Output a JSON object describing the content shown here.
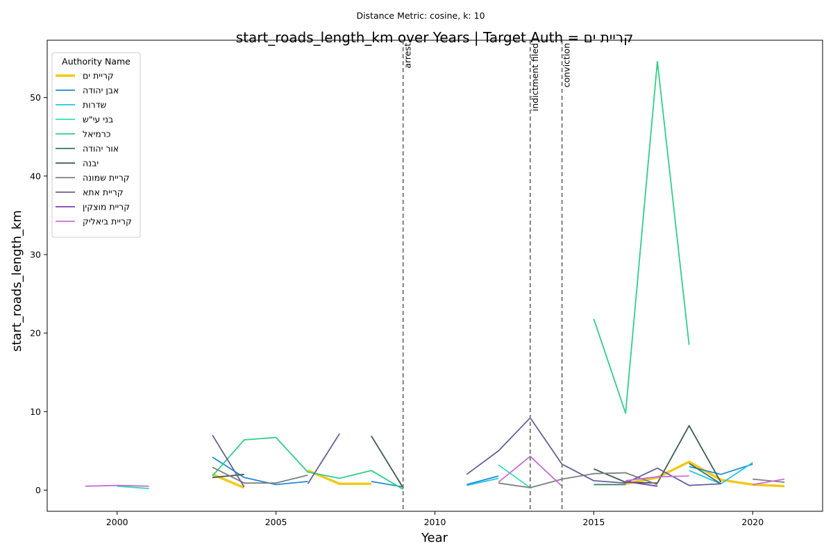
{
  "suptitle": "Distance Metric: cosine, k: 10",
  "chart_data": {
    "type": "line",
    "title": "start_roads_length_km over Years | Target Auth = קריית ים",
    "xlabel": "Year",
    "ylabel": "start_roads_length_km",
    "xlim": [
      1997.8,
      2022.2
    ],
    "ylim": [
      -2.7,
      57.3
    ],
    "x_ticks": [
      2000,
      2005,
      2010,
      2015,
      2020
    ],
    "y_ticks": [
      0,
      10,
      20,
      30,
      40,
      50
    ],
    "grid": false,
    "legend": {
      "title": "Authority Name",
      "placement": "top-left"
    },
    "events": [
      {
        "x": 2009,
        "label": "arrest"
      },
      {
        "x": 2013,
        "label": "indictment filed"
      },
      {
        "x": 2014,
        "label": "conviction"
      }
    ],
    "series": [
      {
        "name": "קריית ים",
        "color": "#f2c919",
        "width": 3.5,
        "points": [
          [
            2003,
            2.0
          ],
          [
            2004,
            0.3
          ],
          [
            null,
            null
          ],
          [
            2006,
            2.5
          ],
          [
            2007,
            0.8
          ],
          [
            2008,
            0.8
          ],
          [
            null,
            null
          ],
          [
            2016,
            0.8
          ],
          [
            2017,
            1.6
          ],
          [
            2018,
            3.6
          ],
          [
            2019,
            1.3
          ],
          [
            2020,
            0.7
          ],
          [
            2021,
            0.5
          ]
        ]
      },
      {
        "name": "אבן יהודה",
        "color": "#1f8ad6",
        "width": 1.8,
        "points": [
          [
            2003,
            4.2
          ],
          [
            2004,
            1.6
          ],
          [
            2005,
            0.7
          ],
          [
            2006,
            1.1
          ],
          [
            null,
            null
          ],
          [
            2008,
            1.1
          ],
          [
            2009,
            0.4
          ],
          [
            null,
            null
          ],
          [
            2011,
            0.7
          ],
          [
            2012,
            1.8
          ],
          [
            null,
            null
          ],
          [
            2018,
            3.0
          ],
          [
            2019,
            2.0
          ],
          [
            2020,
            3.3
          ]
        ]
      },
      {
        "name": "שדרות",
        "color": "#22c3e6",
        "width": 1.8,
        "points": [
          [
            2011,
            0.6
          ],
          [
            2012,
            1.5
          ],
          [
            null,
            null
          ],
          [
            2018,
            2.5
          ],
          [
            2019,
            0.8
          ],
          [
            2020,
            3.5
          ]
        ]
      },
      {
        "name": "בני עי\"ש",
        "color": "#2ee0b4",
        "width": 1.8,
        "points": [
          [
            2000,
            0.5
          ],
          [
            2001,
            0.2
          ],
          [
            null,
            null
          ],
          [
            2012,
            3.2
          ],
          [
            2013,
            0.3
          ]
        ]
      },
      {
        "name": "כרמיאל",
        "color": "#2ecf87",
        "width": 1.8,
        "points": [
          [
            2003,
            1.8
          ],
          [
            2004,
            6.4
          ],
          [
            2005,
            6.7
          ],
          [
            2006,
            2.3
          ],
          [
            2007,
            1.5
          ],
          [
            2008,
            2.5
          ],
          [
            2009,
            0.1
          ],
          [
            null,
            null
          ],
          [
            2015,
            21.8
          ],
          [
            2016,
            9.8
          ],
          [
            2017,
            54.6
          ],
          [
            2018,
            18.5
          ]
        ]
      },
      {
        "name": "אור יהודה",
        "color": "#357561",
        "width": 1.8,
        "points": [
          [
            2015,
            0.7
          ],
          [
            2016,
            0.7
          ],
          [
            null,
            null
          ],
          [
            2018,
            3.4
          ],
          [
            2019,
            0.8
          ]
        ]
      },
      {
        "name": "יבנה",
        "color": "#3c5a52",
        "width": 1.8,
        "points": [
          [
            2003,
            1.6
          ],
          [
            2004,
            2.0
          ],
          [
            null,
            null
          ],
          [
            2008,
            6.9
          ],
          [
            2009,
            0.3
          ],
          [
            null,
            null
          ],
          [
            2015,
            2.7
          ],
          [
            2016,
            1.0
          ],
          [
            2017,
            0.9
          ],
          [
            2018,
            8.2
          ],
          [
            2019,
            1.0
          ]
        ]
      },
      {
        "name": "קריית שמונה",
        "color": "#7a807e",
        "width": 1.8,
        "points": [
          [
            2003,
            2.9
          ],
          [
            2004,
            0.9
          ],
          [
            2005,
            0.9
          ],
          [
            2006,
            1.9
          ],
          [
            null,
            null
          ],
          [
            2012,
            0.9
          ],
          [
            2013,
            0.3
          ],
          [
            2014,
            1.4
          ],
          [
            2015,
            2.1
          ],
          [
            2016,
            2.2
          ],
          [
            2017,
            0.7
          ],
          [
            null,
            null
          ],
          [
            2020,
            1.4
          ],
          [
            2021,
            1.0
          ]
        ]
      },
      {
        "name": "קריית אתא",
        "color": "#62619a",
        "width": 1.8,
        "points": [
          [
            2003,
            7.0
          ],
          [
            2004,
            0.4
          ],
          [
            null,
            null
          ],
          [
            2006,
            0.8
          ],
          [
            2007,
            7.2
          ],
          [
            null,
            null
          ],
          [
            2011,
            2.0
          ],
          [
            2012,
            5.0
          ],
          [
            2013,
            9.2
          ],
          [
            2014,
            3.3
          ],
          [
            2015,
            1.2
          ],
          [
            2016,
            0.9
          ],
          [
            2017,
            2.8
          ],
          [
            2018,
            0.6
          ],
          [
            2019,
            0.8
          ]
        ]
      },
      {
        "name": "קריית מוצקין",
        "color": "#7a3fb0",
        "width": 1.8,
        "points": [
          [
            2016,
            1.1
          ],
          [
            2017,
            0.5
          ]
        ]
      },
      {
        "name": "קריית ביאליק",
        "color": "#c86dd6",
        "width": 1.8,
        "points": [
          [
            1999,
            0.5
          ],
          [
            2000,
            0.6
          ],
          [
            2001,
            0.5
          ],
          [
            null,
            null
          ],
          [
            2012,
            1.0
          ],
          [
            2013,
            4.3
          ],
          [
            2014,
            0.5
          ],
          [
            null,
            null
          ],
          [
            2016,
            1.2
          ],
          [
            2017,
            1.7
          ],
          [
            2018,
            1.8
          ],
          [
            null,
            null
          ],
          [
            2020,
            0.7
          ],
          [
            2021,
            1.4
          ]
        ]
      }
    ]
  }
}
